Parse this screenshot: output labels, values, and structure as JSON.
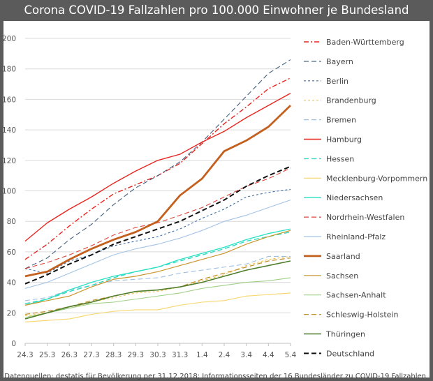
{
  "title": "Corona COVID-19 Fallzahlen pro 100.000 Einwohner je Bundesland",
  "source": "Datenquellen: destatis für Bevölkerung per 31.12.2018; Informationsseiten der 16 Bundesländer zu COVID-19 Fallzahlen",
  "chart_data": {
    "type": "line",
    "title": "Corona COVID-19 Fallzahlen pro 100.000 Einwohner je Bundesland",
    "xlabel": "",
    "ylabel": "",
    "ylim": [
      0,
      200
    ],
    "yticks": [
      0,
      20,
      40,
      60,
      80,
      100,
      120,
      140,
      160,
      180,
      200
    ],
    "grid": true,
    "legend": "right",
    "categories": [
      "24.3",
      "25.3",
      "26.3",
      "27.3",
      "28.3",
      "29.3",
      "30.3",
      "31.3",
      "1.4",
      "2.4",
      "3.4",
      "4.4",
      "5.4"
    ],
    "series": [
      {
        "name": "Baden-Württemberg",
        "color": "#e8251f",
        "dash": "dashdot",
        "width": 1.4,
        "values": [
          55,
          65,
          77,
          88,
          98,
          104,
          110,
          118,
          131,
          144,
          155,
          167,
          174
        ]
      },
      {
        "name": "Bayern",
        "color": "#44607e",
        "dash": "longdash",
        "width": 1.1,
        "values": [
          49,
          56,
          68,
          78,
          91,
          102,
          110,
          119,
          132,
          147,
          162,
          177,
          186
        ]
      },
      {
        "name": "Berlin",
        "color": "#3d6fa8",
        "dash": "shortdash",
        "width": 1.1,
        "values": [
          49,
          46,
          54,
          58,
          64,
          67,
          70,
          75,
          82,
          88,
          96,
          99,
          101
        ]
      },
      {
        "name": "Brandenburg",
        "color": "#f3c24b",
        "dash": "shortdash",
        "width": 1.1,
        "values": [
          18,
          20,
          23,
          27,
          30,
          33,
          34,
          37,
          41,
          45,
          51,
          55,
          57
        ]
      },
      {
        "name": "Bremen",
        "color": "#9dc0e4",
        "dash": "longdash",
        "width": 1.1,
        "values": [
          28,
          30,
          35,
          38,
          41,
          42,
          43,
          46,
          48,
          50,
          52,
          57,
          57
        ]
      },
      {
        "name": "Hamburg",
        "color": "#e8251f",
        "dash": "solid",
        "width": 1.4,
        "values": [
          67,
          79,
          88,
          96,
          105,
          113,
          120,
          124,
          132,
          139,
          148,
          156,
          164
        ]
      },
      {
        "name": "Hessen",
        "color": "#33d9c0",
        "dash": "longdash",
        "width": 1.4,
        "values": [
          26,
          29,
          34,
          38,
          43,
          47,
          50,
          54,
          58,
          62,
          67,
          70,
          73
        ]
      },
      {
        "name": "Mecklenburg-Vorpommern",
        "color": "#f7d56a",
        "dash": "solid",
        "width": 1.1,
        "values": [
          14,
          15,
          16,
          19,
          21,
          22,
          22,
          25,
          27,
          28,
          31,
          32,
          33
        ]
      },
      {
        "name": "Niedersachsen",
        "color": "#27e0c4",
        "dash": "solid",
        "width": 1.3,
        "values": [
          25,
          29,
          35,
          40,
          44,
          47,
          50,
          55,
          59,
          63,
          68,
          72,
          75
        ]
      },
      {
        "name": "Nordrhein-Westfalen",
        "color": "#e0443a",
        "dash": "longdash",
        "width": 1.1,
        "values": [
          49,
          53,
          58,
          64,
          71,
          76,
          79,
          84,
          89,
          96,
          103,
          108,
          115
        ]
      },
      {
        "name": "Rheinland-Pfalz",
        "color": "#a3c3e6",
        "dash": "solid",
        "width": 1.1,
        "values": [
          36,
          40,
          46,
          52,
          58,
          62,
          65,
          69,
          74,
          80,
          84,
          89,
          94
        ]
      },
      {
        "name": "Saarland",
        "color": "#c4601e",
        "dash": "solid",
        "width": 2.8,
        "values": [
          44,
          47,
          55,
          62,
          68,
          73,
          80,
          97,
          108,
          126,
          133,
          142,
          156
        ]
      },
      {
        "name": "Sachsen",
        "color": "#c9952c",
        "dash": "solid",
        "width": 1.2,
        "values": [
          25,
          28,
          31,
          37,
          42,
          44,
          47,
          51,
          55,
          59,
          65,
          70,
          74
        ]
      },
      {
        "name": "Sachsen-Anhalt",
        "color": "#9fcf87",
        "dash": "solid",
        "width": 1.1,
        "values": [
          17,
          20,
          23,
          26,
          27,
          29,
          31,
          33,
          36,
          38,
          40,
          41,
          43
        ]
      },
      {
        "name": "Schleswig-Holstein",
        "color": "#c3922e",
        "dash": "longdash",
        "width": 1.3,
        "values": [
          19,
          21,
          24,
          28,
          31,
          34,
          35,
          37,
          42,
          46,
          50,
          54,
          56
        ]
      },
      {
        "name": "Thüringen",
        "color": "#4f7d2b",
        "dash": "solid",
        "width": 1.6,
        "values": [
          16,
          20,
          24,
          27,
          31,
          34,
          35,
          37,
          40,
          44,
          48,
          51,
          54
        ]
      },
      {
        "name": "Deutschland",
        "color": "#111111",
        "dash": "longdash",
        "width": 2,
        "values": [
          39,
          45,
          52,
          58,
          65,
          70,
          75,
          80,
          87,
          94,
          103,
          110,
          116
        ]
      }
    ]
  }
}
